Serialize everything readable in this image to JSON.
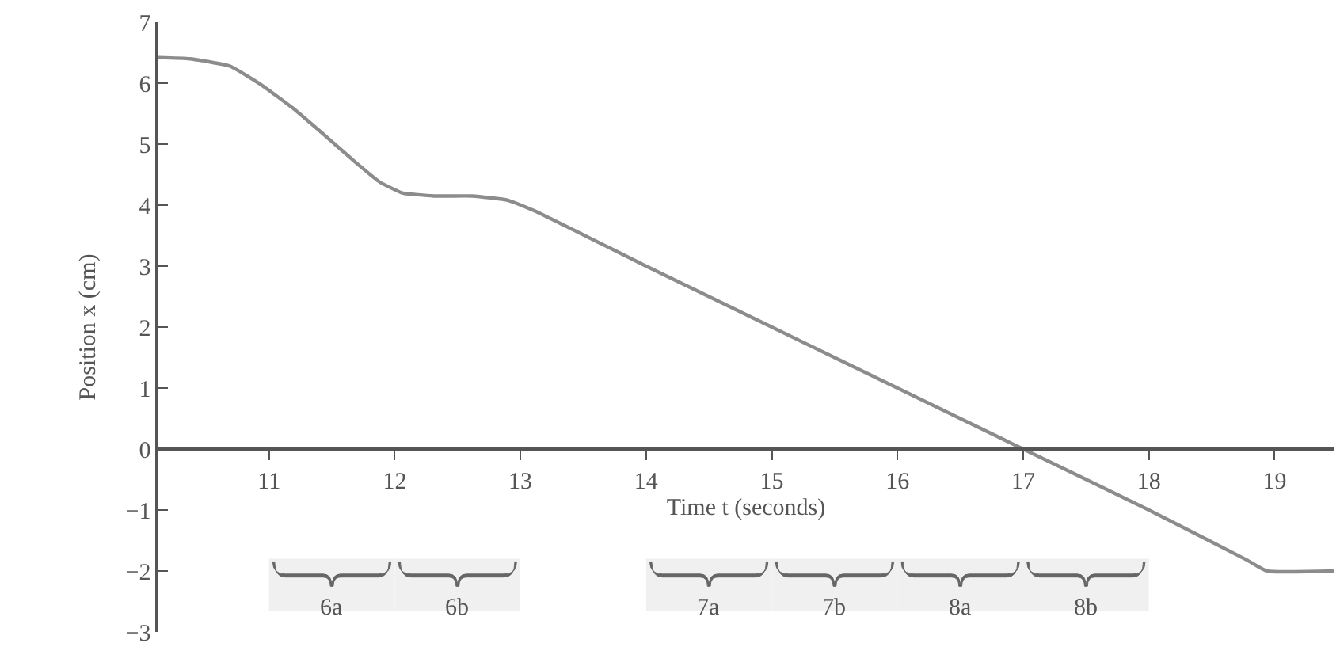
{
  "chart_data": {
    "type": "line",
    "xlabel": "Time t (seconds)",
    "ylabel": "Position x (cm)",
    "x": [
      10.12,
      10.37,
      10.69,
      10.94,
      11.19,
      11.44,
      11.69,
      11.88,
      12.06,
      12.31,
      12.62,
      12.9,
      13.12,
      14,
      15,
      16,
      17,
      18,
      18.78,
      18.94,
      19.47
    ],
    "series": [
      {
        "color": "#8c8c8c",
        "values": [
          6.42,
          6.4,
          6.28,
          5.97,
          5.59,
          5.15,
          4.7,
          4.38,
          4.2,
          4.15,
          4.15,
          4.08,
          3.9,
          3,
          2,
          1,
          0,
          -1,
          -1.82,
          -2,
          -2
        ]
      }
    ],
    "xlim": [
      10.12,
      19.47
    ],
    "ylim": [
      -3,
      7
    ],
    "xticks": [
      11,
      12,
      13,
      14,
      15,
      16,
      17,
      18,
      19
    ],
    "yticks": [
      {
        "value": -3,
        "label": "−3"
      },
      {
        "value": -2,
        "label": "−2"
      },
      {
        "value": -1,
        "label": "−1"
      },
      0,
      1,
      2,
      3,
      4,
      5,
      6,
      7
    ],
    "bands": [
      {
        "axis": "x",
        "from": 11,
        "to": 12,
        "label": "6a"
      },
      {
        "axis": "x",
        "from": 12,
        "to": 13,
        "label": "6b"
      },
      {
        "axis": "x",
        "from": 14,
        "to": 15,
        "label": "7a"
      },
      {
        "axis": "x",
        "from": 15,
        "to": 16,
        "label": "7b"
      },
      {
        "axis": "x",
        "from": 16,
        "to": 17,
        "label": "8a"
      },
      {
        "axis": "x",
        "from": 17,
        "to": 18,
        "label": "8b"
      }
    ],
    "grid": false,
    "marker": "none",
    "line_style": "solid"
  }
}
